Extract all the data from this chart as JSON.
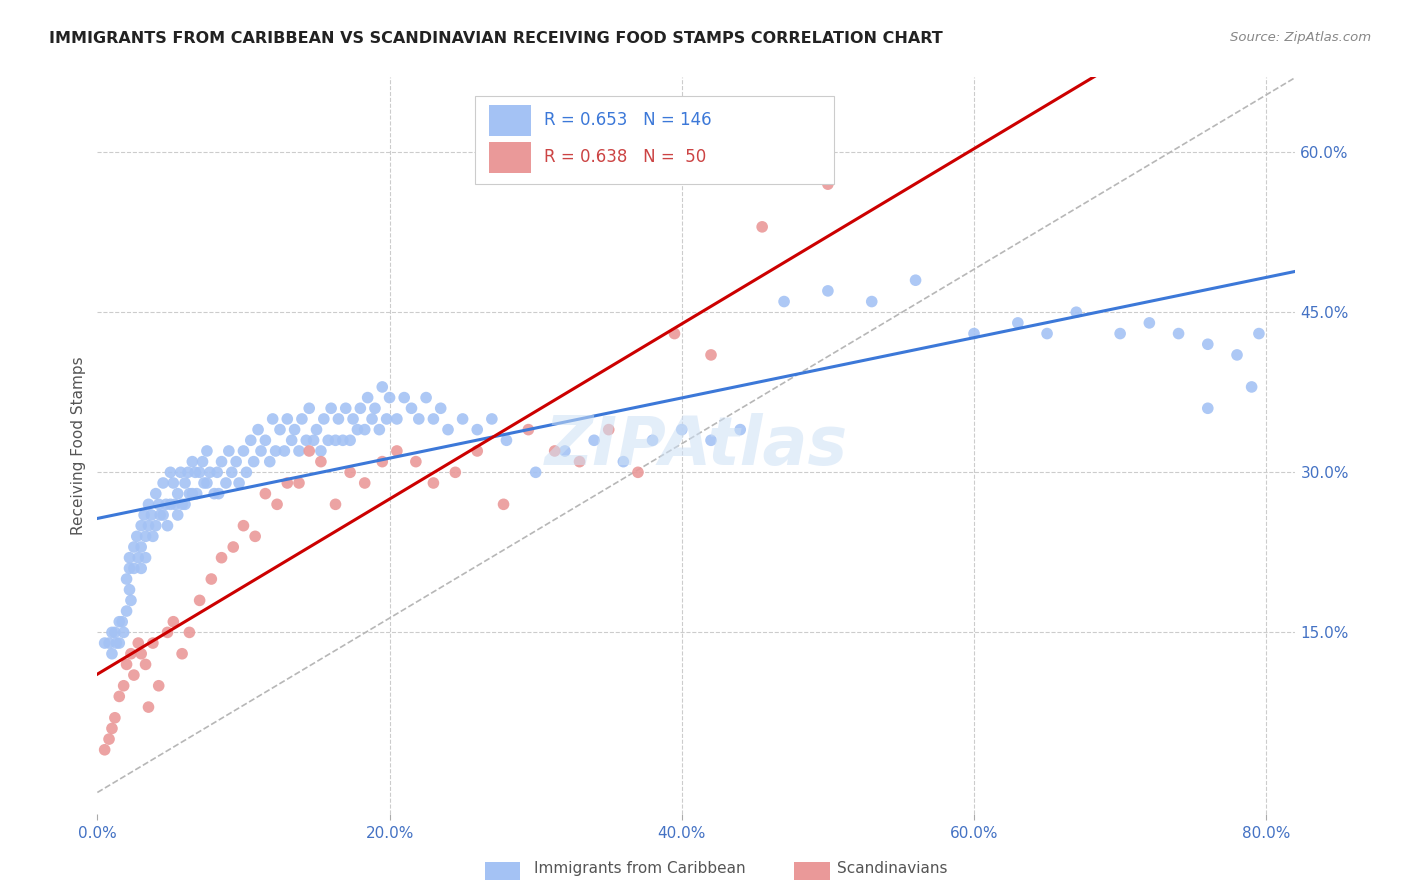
{
  "title": "IMMIGRANTS FROM CARIBBEAN VS SCANDINAVIAN RECEIVING FOOD STAMPS CORRELATION CHART",
  "source": "Source: ZipAtlas.com",
  "ylabel": "Receiving Food Stamps",
  "x_tick_labels": [
    "0.0%",
    "20.0%",
    "40.0%",
    "60.0%",
    "80.0%"
  ],
  "x_tick_values": [
    0.0,
    0.2,
    0.4,
    0.6,
    0.8
  ],
  "y_tick_labels": [
    "15.0%",
    "30.0%",
    "45.0%",
    "60.0%"
  ],
  "y_tick_values": [
    0.15,
    0.3,
    0.45,
    0.6
  ],
  "xlim": [
    0.0,
    0.82
  ],
  "ylim": [
    -0.02,
    0.67
  ],
  "caribbean_R": 0.653,
  "caribbean_N": 146,
  "scandinavian_R": 0.638,
  "scandinavian_N": 50,
  "blue_color": "#a4c2f4",
  "pink_color": "#ea9999",
  "blue_line_color": "#3c78d8",
  "pink_line_color": "#cc0000",
  "diagonal_color": "#b7b7b7",
  "watermark": "ZIPAtlas",
  "legend_label_caribbean": "Immigrants from Caribbean",
  "legend_label_scandinavian": "Scandinavians",
  "caribbean_x": [
    0.005,
    0.008,
    0.01,
    0.01,
    0.012,
    0.013,
    0.015,
    0.015,
    0.017,
    0.018,
    0.02,
    0.02,
    0.022,
    0.022,
    0.022,
    0.023,
    0.025,
    0.025,
    0.027,
    0.028,
    0.03,
    0.03,
    0.03,
    0.032,
    0.033,
    0.033,
    0.035,
    0.035,
    0.037,
    0.038,
    0.04,
    0.04,
    0.042,
    0.043,
    0.045,
    0.045,
    0.047,
    0.048,
    0.05,
    0.05,
    0.052,
    0.053,
    0.055,
    0.055,
    0.057,
    0.058,
    0.06,
    0.06,
    0.062,
    0.063,
    0.065,
    0.065,
    0.067,
    0.068,
    0.07,
    0.072,
    0.073,
    0.075,
    0.075,
    0.077,
    0.08,
    0.082,
    0.083,
    0.085,
    0.088,
    0.09,
    0.092,
    0.095,
    0.097,
    0.1,
    0.102,
    0.105,
    0.107,
    0.11,
    0.112,
    0.115,
    0.118,
    0.12,
    0.122,
    0.125,
    0.128,
    0.13,
    0.133,
    0.135,
    0.138,
    0.14,
    0.143,
    0.145,
    0.148,
    0.15,
    0.153,
    0.155,
    0.158,
    0.16,
    0.163,
    0.165,
    0.168,
    0.17,
    0.173,
    0.175,
    0.178,
    0.18,
    0.183,
    0.185,
    0.188,
    0.19,
    0.193,
    0.195,
    0.198,
    0.2,
    0.205,
    0.21,
    0.215,
    0.22,
    0.225,
    0.23,
    0.235,
    0.24,
    0.25,
    0.26,
    0.27,
    0.28,
    0.3,
    0.32,
    0.34,
    0.36,
    0.38,
    0.4,
    0.42,
    0.44,
    0.47,
    0.5,
    0.53,
    0.56,
    0.6,
    0.63,
    0.65,
    0.67,
    0.7,
    0.72,
    0.74,
    0.76,
    0.78,
    0.795,
    0.79,
    0.76
  ],
  "caribbean_y": [
    0.14,
    0.14,
    0.15,
    0.13,
    0.15,
    0.14,
    0.16,
    0.14,
    0.16,
    0.15,
    0.2,
    0.17,
    0.22,
    0.21,
    0.19,
    0.18,
    0.23,
    0.21,
    0.24,
    0.22,
    0.25,
    0.23,
    0.21,
    0.26,
    0.24,
    0.22,
    0.27,
    0.25,
    0.26,
    0.24,
    0.28,
    0.25,
    0.27,
    0.26,
    0.29,
    0.26,
    0.27,
    0.25,
    0.3,
    0.27,
    0.29,
    0.27,
    0.28,
    0.26,
    0.3,
    0.27,
    0.29,
    0.27,
    0.3,
    0.28,
    0.31,
    0.28,
    0.3,
    0.28,
    0.3,
    0.31,
    0.29,
    0.32,
    0.29,
    0.3,
    0.28,
    0.3,
    0.28,
    0.31,
    0.29,
    0.32,
    0.3,
    0.31,
    0.29,
    0.32,
    0.3,
    0.33,
    0.31,
    0.34,
    0.32,
    0.33,
    0.31,
    0.35,
    0.32,
    0.34,
    0.32,
    0.35,
    0.33,
    0.34,
    0.32,
    0.35,
    0.33,
    0.36,
    0.33,
    0.34,
    0.32,
    0.35,
    0.33,
    0.36,
    0.33,
    0.35,
    0.33,
    0.36,
    0.33,
    0.35,
    0.34,
    0.36,
    0.34,
    0.37,
    0.35,
    0.36,
    0.34,
    0.38,
    0.35,
    0.37,
    0.35,
    0.37,
    0.36,
    0.35,
    0.37,
    0.35,
    0.36,
    0.34,
    0.35,
    0.34,
    0.35,
    0.33,
    0.3,
    0.32,
    0.33,
    0.31,
    0.33,
    0.34,
    0.33,
    0.34,
    0.46,
    0.47,
    0.46,
    0.48,
    0.43,
    0.44,
    0.43,
    0.45,
    0.43,
    0.44,
    0.43,
    0.42,
    0.41,
    0.43,
    0.38,
    0.36
  ],
  "scandinavian_x": [
    0.005,
    0.008,
    0.01,
    0.012,
    0.015,
    0.018,
    0.02,
    0.023,
    0.025,
    0.028,
    0.03,
    0.033,
    0.035,
    0.038,
    0.042,
    0.048,
    0.052,
    0.058,
    0.063,
    0.07,
    0.078,
    0.085,
    0.093,
    0.1,
    0.108,
    0.115,
    0.123,
    0.13,
    0.138,
    0.145,
    0.153,
    0.163,
    0.173,
    0.183,
    0.195,
    0.205,
    0.218,
    0.23,
    0.245,
    0.26,
    0.278,
    0.295,
    0.313,
    0.33,
    0.35,
    0.37,
    0.395,
    0.42,
    0.455,
    0.5
  ],
  "scandinavian_y": [
    0.04,
    0.05,
    0.06,
    0.07,
    0.09,
    0.1,
    0.12,
    0.13,
    0.11,
    0.14,
    0.13,
    0.12,
    0.08,
    0.14,
    0.1,
    0.15,
    0.16,
    0.13,
    0.15,
    0.18,
    0.2,
    0.22,
    0.23,
    0.25,
    0.24,
    0.28,
    0.27,
    0.29,
    0.29,
    0.32,
    0.31,
    0.27,
    0.3,
    0.29,
    0.31,
    0.32,
    0.31,
    0.29,
    0.3,
    0.32,
    0.27,
    0.34,
    0.32,
    0.31,
    0.34,
    0.3,
    0.43,
    0.41,
    0.53,
    0.57
  ]
}
